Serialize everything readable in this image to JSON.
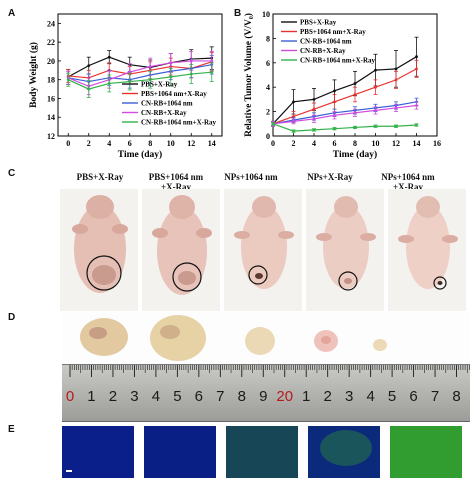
{
  "panel_labels": [
    "A",
    "B",
    "C",
    "D",
    "E"
  ],
  "colors": {
    "pbs_xray": "#111111",
    "pbs_1064_xray": "#e8322f",
    "cnrb_1064": "#3b5fd6",
    "cnrb_xray": "#d14be0",
    "cnrb_1064_xray": "#33b24a"
  },
  "chart_data": [
    {
      "type": "line",
      "panel": "A",
      "xlabel": "Time (day)",
      "ylabel": "Body Weight (g)",
      "xlim": [
        -1,
        15
      ],
      "ylim": [
        12,
        25
      ],
      "xticks": [
        "0",
        "2",
        "4",
        "6",
        "8",
        "10",
        "12",
        "14"
      ],
      "yticks": [
        "12",
        "14",
        "16",
        "18",
        "20",
        "22",
        "24"
      ],
      "x": [
        0,
        2,
        4,
        6,
        8,
        10,
        12,
        14
      ],
      "legend_position": "bottom-right",
      "series": [
        {
          "name": "PBS+X-Ray",
          "values": [
            18.3,
            19.5,
            20.4,
            19.6,
            19.3,
            19.8,
            20.2,
            20.3
          ],
          "err": [
            0.8,
            0.9,
            0.7,
            0.8,
            0.8,
            1.0,
            1.0,
            1.2
          ]
        },
        {
          "name": "PBS+1064 nm+X-Ray",
          "values": [
            18.4,
            18.2,
            19.0,
            18.6,
            19.0,
            19.4,
            19.2,
            19.9
          ],
          "err": [
            0.7,
            0.8,
            0.8,
            0.8,
            0.9,
            0.9,
            1.0,
            1.0
          ]
        },
        {
          "name": "CN-RB+1064 nm",
          "values": [
            18.2,
            17.8,
            18.2,
            18.0,
            18.5,
            18.9,
            19.2,
            19.6
          ],
          "err": [
            0.7,
            0.8,
            0.8,
            0.9,
            0.9,
            0.9,
            1.0,
            1.0
          ]
        },
        {
          "name": "CN-RB+X-Ray",
          "values": [
            18.2,
            17.3,
            18.0,
            18.8,
            19.4,
            19.8,
            20.0,
            20.0
          ],
          "err": [
            0.7,
            0.9,
            0.9,
            0.9,
            0.9,
            1.0,
            1.0,
            1.0
          ]
        },
        {
          "name": "CN-RB+1064 nm+X-Ray",
          "values": [
            18.0,
            17.0,
            17.6,
            17.8,
            18.0,
            18.3,
            18.6,
            18.8
          ],
          "err": [
            0.7,
            0.9,
            0.9,
            0.9,
            0.9,
            0.9,
            1.0,
            1.0
          ]
        }
      ]
    },
    {
      "type": "line",
      "panel": "B",
      "xlabel": "Time (day)",
      "ylabel": "Relative Tumor Volume (V/V₀)",
      "xlim": [
        0,
        16
      ],
      "ylim": [
        0,
        10
      ],
      "xticks": [
        "0",
        "2",
        "4",
        "6",
        "8",
        "10",
        "12",
        "14",
        "16"
      ],
      "yticks": [
        "0",
        "2",
        "4",
        "6",
        "8",
        "10"
      ],
      "x": [
        0,
        2,
        4,
        6,
        8,
        10,
        12,
        14
      ],
      "legend_position": "top-left",
      "series": [
        {
          "name": "PBS+X-Ray",
          "values": [
            1.0,
            2.8,
            3.0,
            3.7,
            4.3,
            5.4,
            5.5,
            6.5
          ],
          "err": [
            0.2,
            1.0,
            0.9,
            0.9,
            1.0,
            1.3,
            1.5,
            1.6
          ]
        },
        {
          "name": "PBS+1064 nm+X-Ray",
          "values": [
            1.0,
            1.6,
            2.2,
            2.8,
            3.4,
            4.0,
            4.6,
            5.5
          ],
          "err": [
            0.2,
            0.4,
            0.5,
            0.6,
            0.6,
            0.6,
            0.7,
            0.7
          ]
        },
        {
          "name": "CN-RB+1064 nm",
          "values": [
            1.0,
            1.3,
            1.6,
            1.9,
            2.1,
            2.3,
            2.5,
            2.8
          ],
          "err": [
            0.2,
            0.2,
            0.3,
            0.3,
            0.3,
            0.3,
            0.3,
            0.3
          ]
        },
        {
          "name": "CN-RB+X-Ray",
          "values": [
            1.0,
            1.2,
            1.4,
            1.7,
            1.9,
            2.1,
            2.3,
            2.5
          ],
          "err": [
            0.2,
            0.2,
            0.3,
            0.3,
            0.3,
            0.3,
            0.3,
            0.3
          ]
        },
        {
          "name": "CN-RB+1064 nm+X-Ray",
          "values": [
            1.0,
            0.4,
            0.5,
            0.6,
            0.7,
            0.8,
            0.8,
            0.9
          ],
          "err": [
            0.1,
            0.1,
            0.1,
            0.1,
            0.1,
            0.1,
            0.1,
            0.1
          ]
        }
      ]
    }
  ],
  "panel_c": {
    "columns": [
      {
        "line1": "PBS+X-Ray",
        "line2": ""
      },
      {
        "line1": "PBS+1064 nm",
        "line2": "+X-Ray"
      },
      {
        "line1": "NPs+1064 nm",
        "line2": ""
      },
      {
        "line1": "NPs+X-Ray",
        "line2": ""
      },
      {
        "line1": "NPs+1064 nm",
        "line2": "+X-Ray"
      }
    ]
  },
  "panel_d": {
    "ruler_numbers": [
      "0",
      "1",
      "2",
      "3",
      "4",
      "5",
      "6",
      "7",
      "8",
      "9",
      "20",
      "1",
      "2",
      "3",
      "4",
      "5",
      "6",
      "7",
      "8"
    ]
  }
}
